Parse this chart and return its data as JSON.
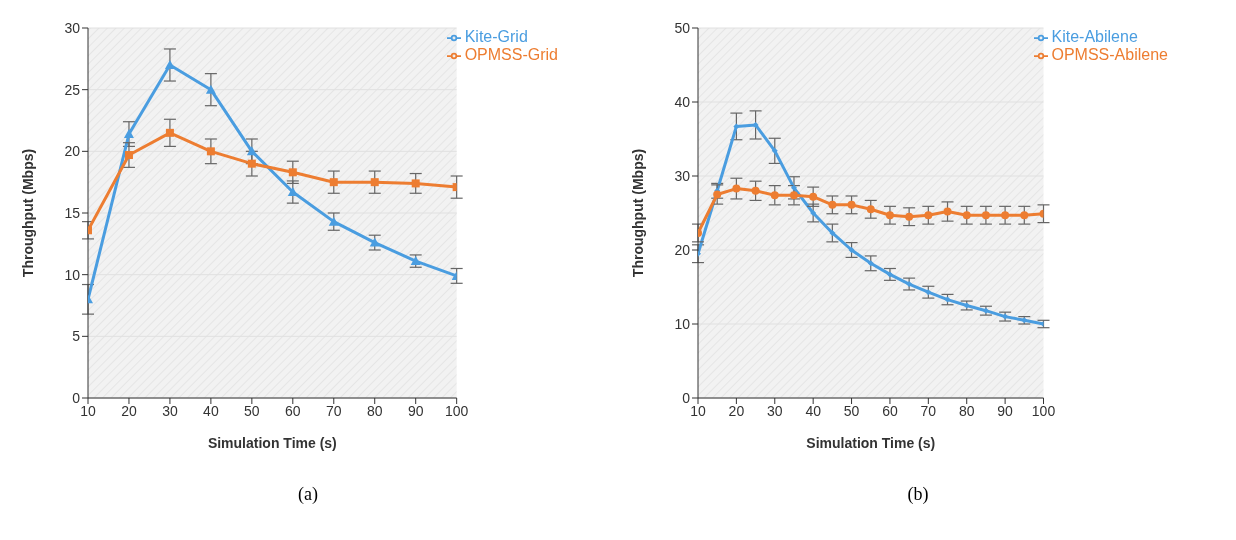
{
  "chart_data": [
    {
      "type": "line",
      "xlabel": "Simulation Time (s)",
      "ylabel": "Throughput (Mbps)",
      "x": [
        10,
        20,
        30,
        40,
        50,
        60,
        70,
        80,
        90,
        100
      ],
      "xlim": [
        10,
        100
      ],
      "xticks": [
        10,
        20,
        30,
        40,
        50,
        60,
        70,
        80,
        90,
        100
      ],
      "ylim": [
        0,
        30
      ],
      "yticks": [
        0,
        5,
        10,
        15,
        20,
        25,
        30
      ],
      "grid": "y",
      "legend": "top right",
      "annotations": [
        "(a)"
      ],
      "series": [
        {
          "name": "Kite-Grid",
          "color": "#4a9de0",
          "marker": "triangle",
          "values": [
            8,
            21.4,
            27,
            25,
            20,
            16.7,
            14.3,
            12.6,
            11.1,
            9.9
          ],
          "errors": [
            1.2,
            1,
            1.3,
            1.3,
            1,
            0.9,
            0.7,
            0.6,
            0.5,
            0.6
          ]
        },
        {
          "name": "OPMSS-Grid",
          "color": "#ed7d31",
          "marker": "square",
          "values": [
            13.6,
            19.7,
            21.5,
            20,
            19,
            18.3,
            17.5,
            17.5,
            17.4,
            17.1
          ],
          "errors": [
            0.7,
            1,
            1.1,
            1,
            1,
            0.9,
            0.9,
            0.9,
            0.8,
            0.9
          ]
        }
      ]
    },
    {
      "type": "line",
      "xlabel": "Simulation Time (s)",
      "ylabel": "Throughput (Mbps)",
      "x": [
        10,
        15,
        20,
        25,
        30,
        35,
        40,
        45,
        50,
        55,
        60,
        65,
        70,
        75,
        80,
        85,
        90,
        95,
        100
      ],
      "xlim": [
        10,
        100
      ],
      "xticks": [
        10,
        20,
        30,
        40,
        50,
        60,
        70,
        80,
        90,
        100
      ],
      "ylim": [
        0,
        50
      ],
      "yticks": [
        0,
        10,
        20,
        30,
        40,
        50
      ],
      "grid": "y",
      "legend": "top right",
      "annotations": [
        "(b)"
      ],
      "series": [
        {
          "name": "Kite-Abilene",
          "color": "#4a9de0",
          "marker": "diamond",
          "values": [
            19.5,
            28,
            36.7,
            36.9,
            33.4,
            28.4,
            25,
            22.3,
            20,
            18.2,
            16.7,
            15.4,
            14.3,
            13.3,
            12.5,
            11.8,
            11,
            10.5,
            10
          ],
          "errors": [
            1.2,
            1,
            1.8,
            1.9,
            1.7,
            1.5,
            1.2,
            1.2,
            1,
            1,
            0.8,
            0.8,
            0.8,
            0.7,
            0.6,
            0.6,
            0.6,
            0.5,
            0.5
          ]
        },
        {
          "name": "OPMSS-Abilene",
          "color": "#ed7d31",
          "marker": "circle",
          "values": [
            22.3,
            27.5,
            28.3,
            28,
            27.4,
            27.4,
            27.2,
            26.1,
            26.1,
            25.5,
            24.7,
            24.5,
            24.7,
            25.2,
            24.7,
            24.7,
            24.7,
            24.7,
            24.9
          ],
          "errors": [
            1.2,
            1.3,
            1.4,
            1.3,
            1.3,
            1.3,
            1.3,
            1.2,
            1.2,
            1.2,
            1.2,
            1.2,
            1.2,
            1.3,
            1.2,
            1.2,
            1.2,
            1.2,
            1.2
          ]
        }
      ]
    }
  ]
}
